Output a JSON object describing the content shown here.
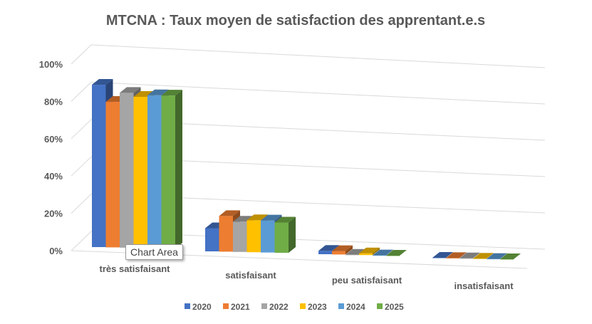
{
  "chart_data": {
    "type": "bar",
    "subtype": "3d-clustered-column",
    "title": "MTCNA : Taux moyen de satisfaction des apprentant.e.s",
    "categories": [
      "très satisfaisant",
      "satisfaisant",
      "peu satisfaisant",
      "insatisfaisant"
    ],
    "series": [
      {
        "name": "2020",
        "color": "#4472C4",
        "values": [
          87,
          13,
          2,
          0
        ]
      },
      {
        "name": "2021",
        "color": "#ED7D31",
        "values": [
          78,
          20,
          2,
          0
        ]
      },
      {
        "name": "2022",
        "color": "#A5A5A5",
        "values": [
          83,
          17,
          0,
          0
        ]
      },
      {
        "name": "2023",
        "color": "#FFC000",
        "values": [
          81,
          18,
          1,
          0
        ]
      },
      {
        "name": "2024",
        "color": "#5B9BD5",
        "values": [
          82,
          18,
          0,
          0
        ]
      },
      {
        "name": "2025",
        "color": "#70AD47",
        "values": [
          82,
          17,
          0,
          0
        ]
      }
    ],
    "yticks": [
      "0%",
      "20%",
      "40%",
      "60%",
      "80%",
      "100%"
    ],
    "ylim": [
      0,
      100
    ],
    "grid": true,
    "legend": "bottom"
  },
  "tooltip": "Chart Area"
}
